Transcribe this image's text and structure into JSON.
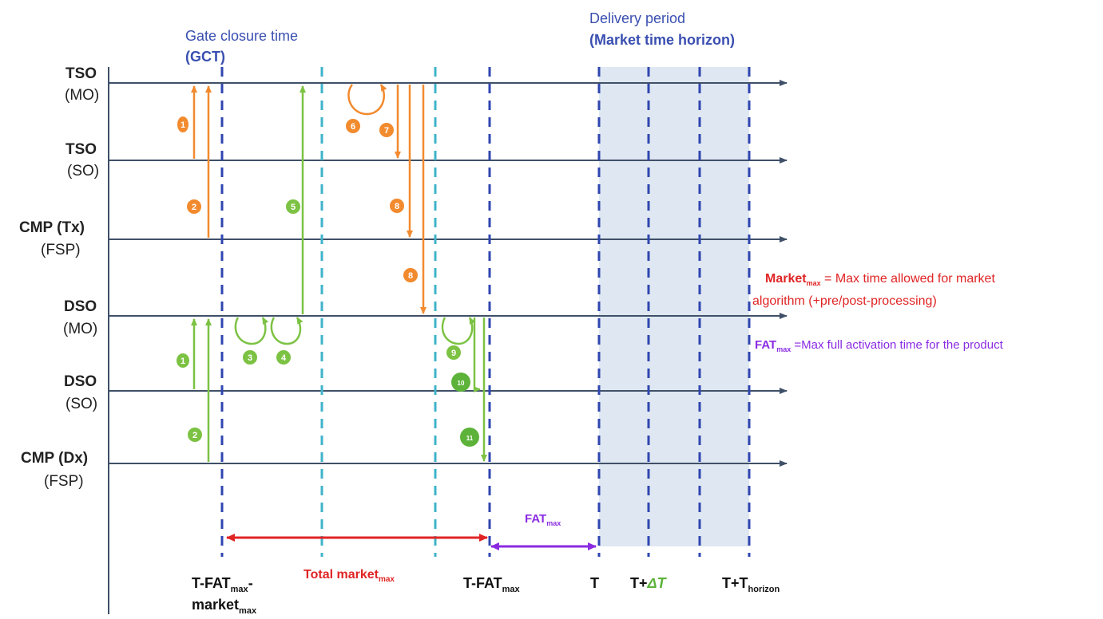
{
  "actors": [
    {
      "name": "TSO",
      "role": "(MO)"
    },
    {
      "name": "TSO",
      "role": "(SO)"
    },
    {
      "name": "CMP (Tx)",
      "role": "(FSP)"
    },
    {
      "name": "DSO",
      "role": "(MO)"
    },
    {
      "name": "DSO",
      "role": "(SO)"
    },
    {
      "name": "CMP (Dx)",
      "role": "(FSP)"
    }
  ],
  "header": {
    "gct_line1": "Gate closure time",
    "gct_line2": "(GCT)",
    "delivery_line1": "Delivery period",
    "delivery_line2": "(Market time horizon)"
  },
  "legend": {
    "market_term": "Market",
    "market_sub": "max",
    "market_def_1": " = Max time allowed for market",
    "market_def_2": "algorithm (+pre/post-processing)",
    "fat_term": "FAT",
    "fat_sub": "max",
    "fat_def": " =Max full activation time for the product"
  },
  "spans": {
    "total_market_main": "Total market",
    "total_market_sub": "max",
    "fat_main": "FAT",
    "fat_sub": "max"
  },
  "bottom_labels": {
    "gct_a": "T-FAT",
    "gct_a_sub": "max",
    "gct_a_tail": "-",
    "gct_b": "market",
    "gct_b_sub": "max",
    "tfat": "T-FAT",
    "tfat_sub": "max",
    "t": "T",
    "tdelta": "T+",
    "tdelta_sym": "ΔT",
    "thorizon": "T+T",
    "thorizon_sub": "horizon"
  },
  "steps_tso": [
    "1",
    "2",
    "5",
    "6",
    "7",
    "8",
    "8"
  ],
  "steps_dso": [
    "1",
    "2",
    "3",
    "4",
    "9",
    "10",
    "11"
  ],
  "colors": {
    "tso_flow": "#f28a2e",
    "dso_flow": "#7cc243",
    "dso_circle": "#5db33a",
    "timeline": "#3f5068",
    "gct_dash": "#2f46b0",
    "mid_dash": "#3fb3c9",
    "delivery_bg": "#dfe7f2",
    "market_span": "#e02424",
    "fat_span": "#8a2be2"
  }
}
